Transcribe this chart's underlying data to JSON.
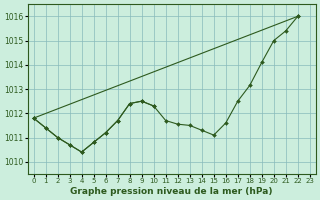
{
  "title": "Graphe pression niveau de la mer (hPa)",
  "bg_color": "#cceedd",
  "line_color": "#2d5a1e",
  "marker": "D",
  "markersize": 2.0,
  "linewidth": 0.8,
  "ylim": [
    1009.5,
    1016.5
  ],
  "xlim": [
    -0.5,
    23.5
  ],
  "yticks": [
    1010,
    1011,
    1012,
    1013,
    1014,
    1015,
    1016
  ],
  "xticks": [
    0,
    1,
    2,
    3,
    4,
    5,
    6,
    7,
    8,
    9,
    10,
    11,
    12,
    13,
    14,
    15,
    16,
    17,
    18,
    19,
    20,
    21,
    22,
    23
  ],
  "series": [
    {
      "x": [
        0,
        1,
        2,
        3,
        4,
        5,
        6,
        7,
        8,
        9,
        10,
        11,
        12,
        13,
        14,
        15,
        16,
        17,
        18,
        19,
        20,
        21,
        22
      ],
      "y": [
        1011.8,
        1011.4,
        1011.0,
        1010.7,
        1010.4,
        1010.8,
        1011.2,
        1011.7,
        1012.4,
        1012.5,
        1012.3,
        1011.7,
        1011.55,
        1011.5,
        1011.3,
        1011.1,
        1011.6,
        1012.5,
        1013.15,
        1014.1,
        1015.0,
        1015.4,
        1016.0
      ]
    },
    {
      "x": [
        0,
        22
      ],
      "y": [
        1011.8,
        1016.0
      ]
    },
    {
      "x": [
        0,
        1,
        2,
        3,
        4,
        5,
        6,
        7,
        8,
        9,
        10
      ],
      "y": [
        1011.8,
        1011.4,
        1011.0,
        1010.7,
        1010.4,
        1010.8,
        1011.2,
        1011.7,
        1012.4,
        1012.5,
        1012.3
      ]
    }
  ]
}
